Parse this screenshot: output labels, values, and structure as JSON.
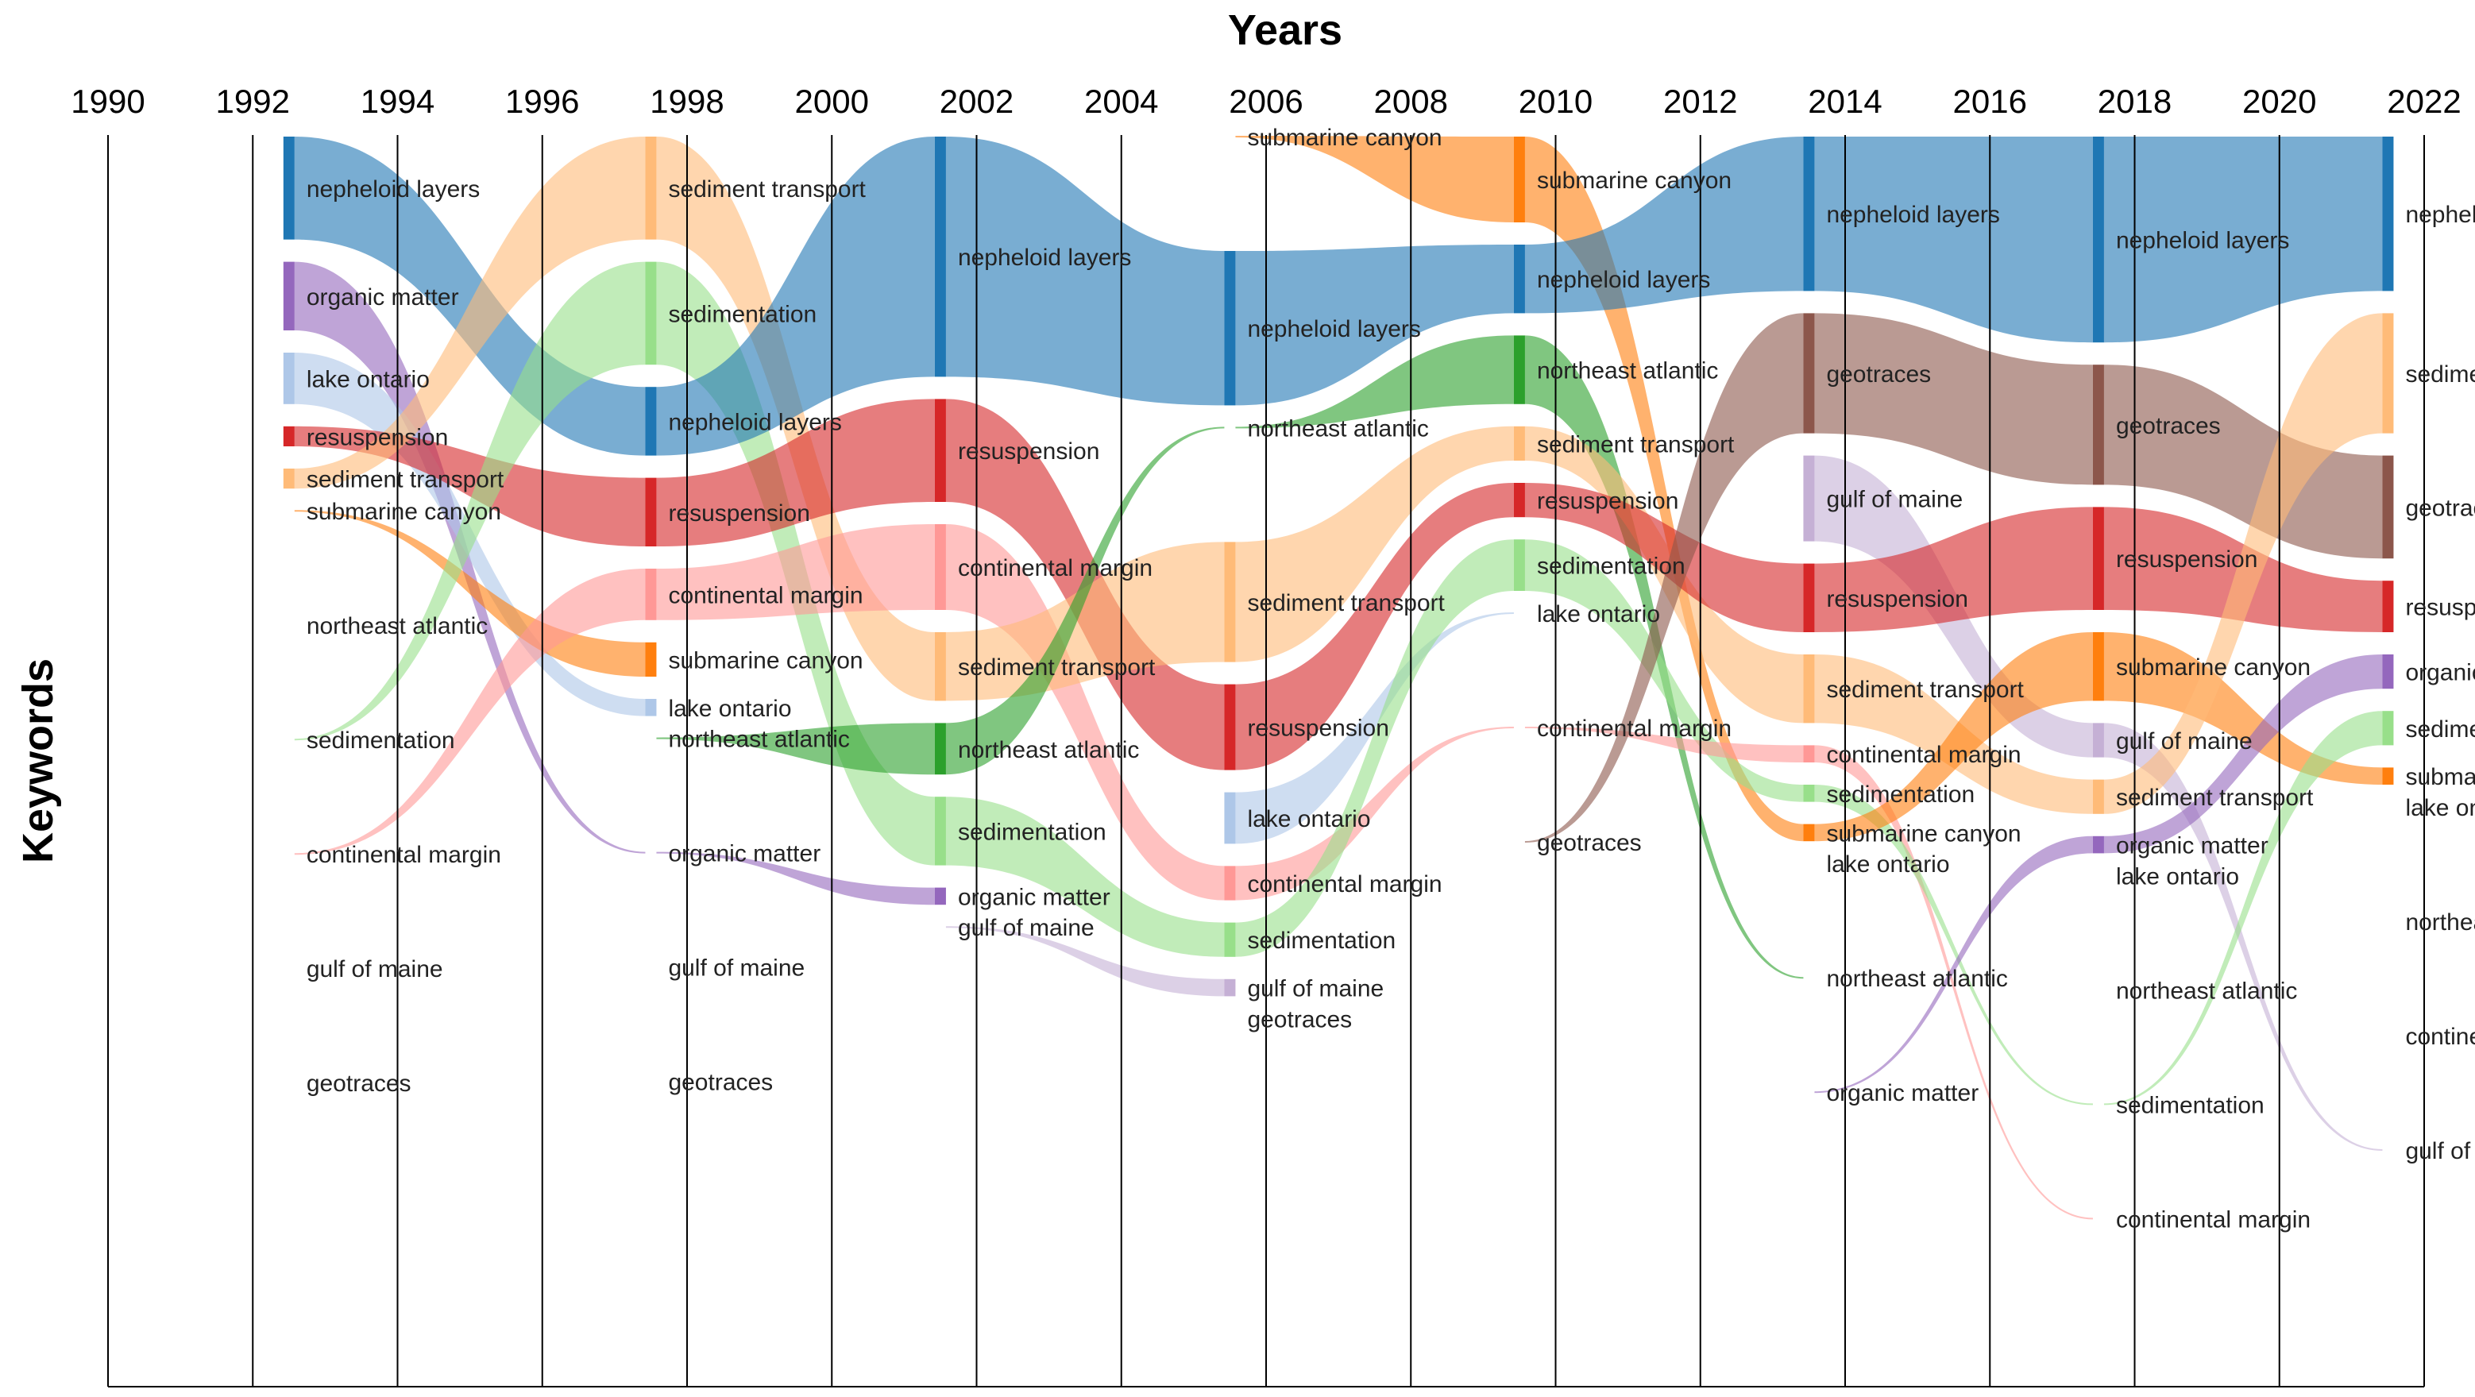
{
  "chart_data": {
    "type": "alluvial",
    "title": "Years",
    "xlabel": "Years",
    "ylabel": "Keywords",
    "ticks": [
      1990,
      1992,
      1994,
      1996,
      1998,
      2000,
      2002,
      2004,
      2006,
      2008,
      2010,
      2012,
      2014,
      2016,
      2018,
      2020,
      2022
    ],
    "xlim": [
      1990,
      2022
    ],
    "colors": {
      "nepheloid layers": "#1f77b4",
      "organic matter": "#9467bd",
      "lake ontario": "#aec7e8",
      "resuspension": "#d62728",
      "sediment transport": "#ffbb78",
      "submarine canyon": "#ff7f0e",
      "northeast atlantic": "#2ca02c",
      "sedimentation": "#98df8a",
      "continental margin": "#ff9896",
      "gulf of maine": "#c5b0d5",
      "geotraces": "#8c564b"
    },
    "columns": [
      {
        "year": 1992.5,
        "nodes": [
          {
            "name": "nepheloid layers",
            "size": 3.6
          },
          {
            "name": "organic matter",
            "size": 2.4
          },
          {
            "name": "lake ontario",
            "size": 1.8
          },
          {
            "name": "resuspension",
            "size": 0.7
          },
          {
            "name": "sediment transport",
            "size": 0.7
          },
          {
            "name": "submarine canyon",
            "size": 0
          },
          {
            "name": "northeast atlantic",
            "size": 0
          },
          {
            "name": "sedimentation",
            "size": 0
          },
          {
            "name": "continental margin",
            "size": 0
          },
          {
            "name": "gulf of maine",
            "size": 0
          },
          {
            "name": "geotraces",
            "size": 0
          }
        ]
      },
      {
        "year": 1997.5,
        "nodes": [
          {
            "name": "sediment transport",
            "size": 3.6
          },
          {
            "name": "sedimentation",
            "size": 3.6
          },
          {
            "name": "nepheloid layers",
            "size": 2.4
          },
          {
            "name": "resuspension",
            "size": 2.4
          },
          {
            "name": "continental margin",
            "size": 1.8
          },
          {
            "name": "submarine canyon",
            "size": 1.2
          },
          {
            "name": "lake ontario",
            "size": 0.6
          },
          {
            "name": "northeast atlantic",
            "size": 0
          },
          {
            "name": "organic matter",
            "size": 0
          },
          {
            "name": "gulf of maine",
            "size": 0
          },
          {
            "name": "geotraces",
            "size": 0
          }
        ]
      },
      {
        "year": 2001.5,
        "nodes": [
          {
            "name": "nepheloid layers",
            "size": 8.4
          },
          {
            "name": "resuspension",
            "size": 3.6
          },
          {
            "name": "continental margin",
            "size": 3.0
          },
          {
            "name": "sediment transport",
            "size": 2.4
          },
          {
            "name": "northeast atlantic",
            "size": 1.8
          },
          {
            "name": "sedimentation",
            "size": 2.4
          },
          {
            "name": "organic matter",
            "size": 0.6
          },
          {
            "name": "gulf of maine",
            "size": 0
          }
        ]
      },
      {
        "year": 2005.5,
        "nodes": [
          {
            "name": "submarine canyon",
            "size": 0
          },
          {
            "name": "nepheloid layers",
            "size": 5.4
          },
          {
            "name": "northeast atlantic",
            "size": 0
          },
          {
            "name": "sediment transport",
            "size": 4.2
          },
          {
            "name": "resuspension",
            "size": 3.0
          },
          {
            "name": "lake ontario",
            "size": 1.8
          },
          {
            "name": "continental margin",
            "size": 1.2
          },
          {
            "name": "sedimentation",
            "size": 1.2
          },
          {
            "name": "gulf of maine",
            "size": 0.6
          },
          {
            "name": "geotraces",
            "size": 0
          }
        ]
      },
      {
        "year": 2009.5,
        "nodes": [
          {
            "name": "submarine canyon",
            "size": 3.0
          },
          {
            "name": "nepheloid layers",
            "size": 2.4
          },
          {
            "name": "northeast atlantic",
            "size": 2.4
          },
          {
            "name": "sediment transport",
            "size": 1.2
          },
          {
            "name": "resuspension",
            "size": 1.2
          },
          {
            "name": "sedimentation",
            "size": 1.8
          },
          {
            "name": "lake ontario",
            "size": 0
          },
          {
            "name": "continental margin",
            "size": 0
          },
          {
            "name": "geotraces",
            "size": 0
          }
        ]
      },
      {
        "year": 2013.5,
        "nodes": [
          {
            "name": "nepheloid layers",
            "size": 5.4
          },
          {
            "name": "geotraces",
            "size": 4.2
          },
          {
            "name": "gulf of maine",
            "size": 3.0
          },
          {
            "name": "resuspension",
            "size": 2.4
          },
          {
            "name": "sediment transport",
            "size": 2.4
          },
          {
            "name": "continental margin",
            "size": 0.6
          },
          {
            "name": "sedimentation",
            "size": 0.6
          },
          {
            "name": "submarine canyon",
            "size": 0.6
          },
          {
            "name": "lake ontario",
            "size": 0
          },
          {
            "name": "northeast atlantic",
            "size": 0
          },
          {
            "name": "organic matter",
            "size": 0
          }
        ]
      },
      {
        "year": 2017.5,
        "nodes": [
          {
            "name": "nepheloid layers",
            "size": 7.2
          },
          {
            "name": "geotraces",
            "size": 4.2
          },
          {
            "name": "resuspension",
            "size": 3.6
          },
          {
            "name": "submarine canyon",
            "size": 2.4
          },
          {
            "name": "gulf of maine",
            "size": 1.2
          },
          {
            "name": "sediment transport",
            "size": 1.2
          },
          {
            "name": "organic matter",
            "size": 0.6
          },
          {
            "name": "lake ontario",
            "size": 0
          },
          {
            "name": "northeast atlantic",
            "size": 0
          },
          {
            "name": "sedimentation",
            "size": 0
          },
          {
            "name": "continental margin",
            "size": 0
          }
        ]
      },
      {
        "year": 2021.5,
        "nodes": [
          {
            "name": "nepheloid layers",
            "size": 5.4
          },
          {
            "name": "sediment transport",
            "size": 4.2
          },
          {
            "name": "geotraces",
            "size": 3.6
          },
          {
            "name": "resuspension",
            "size": 1.8
          },
          {
            "name": "organic matter",
            "size": 1.2
          },
          {
            "name": "sedimentation",
            "size": 1.2
          },
          {
            "name": "submarine canyon",
            "size": 0.6
          },
          {
            "name": "lake ontario",
            "size": 0
          },
          {
            "name": "northeast atlantic",
            "size": 0
          },
          {
            "name": "continental margin",
            "size": 0
          },
          {
            "name": "gulf of maine",
            "size": 0
          }
        ]
      }
    ]
  }
}
